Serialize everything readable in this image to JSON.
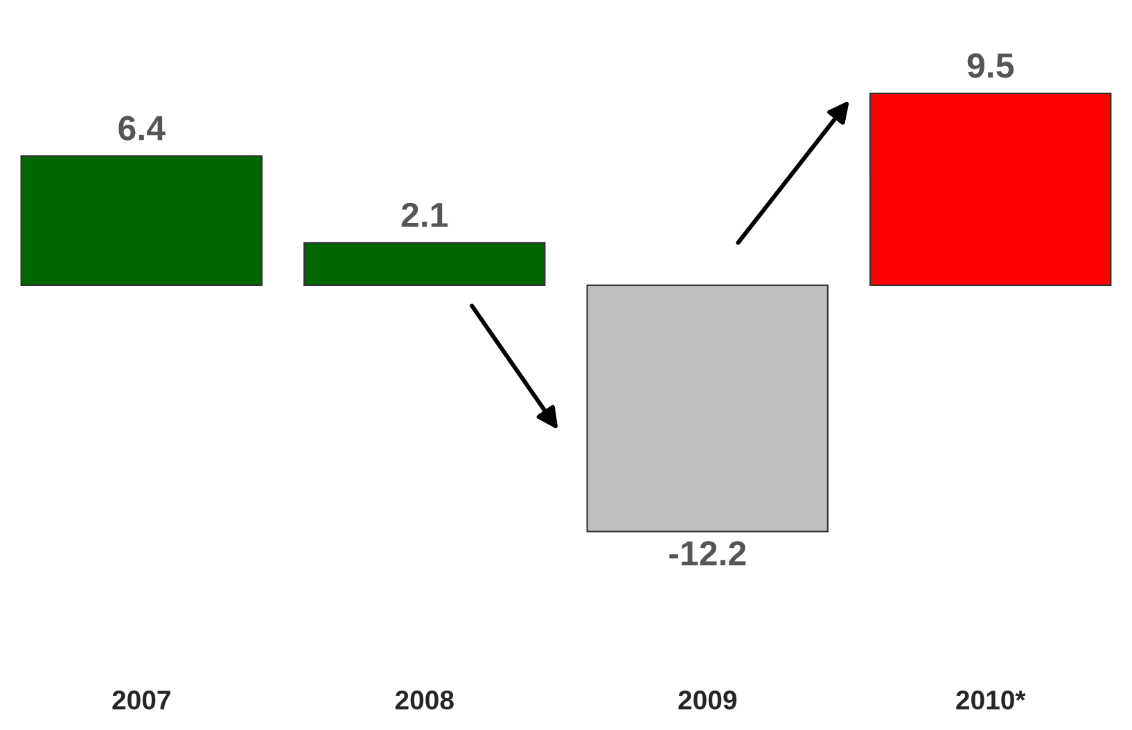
{
  "chart_data": {
    "type": "bar",
    "categories": [
      "2007",
      "2008",
      "2009",
      "2010*"
    ],
    "values": [
      6.4,
      2.1,
      -12.2,
      9.5
    ],
    "colors": [
      "#006600",
      "#006600",
      "#c0c0c0",
      "#ff0000"
    ],
    "data_labels": true
  }
}
